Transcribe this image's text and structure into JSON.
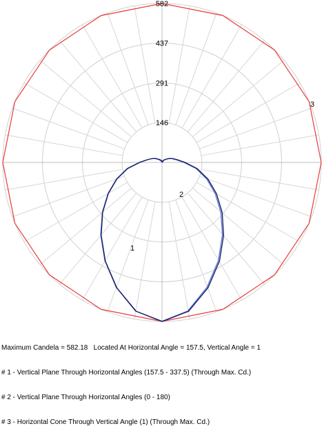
{
  "chart_data": {
    "type": "polar",
    "radial_ticks": [
      "146",
      "291",
      "437",
      "582"
    ],
    "radial_tick_values": [
      146,
      291,
      437,
      582
    ],
    "r_max": 582,
    "angular_gridlines_deg": 10,
    "series": [
      {
        "label": "1",
        "color": "#4a6fd8",
        "angles_deg": [
          0,
          10,
          20,
          30,
          40,
          50,
          60,
          70,
          80,
          90,
          100,
          110,
          120,
          130,
          140,
          150,
          160,
          170,
          180
        ],
        "r": [
          582,
          552,
          486,
          415,
          346,
          283,
          226,
          175,
          128,
          82,
          55,
          40,
          28,
          18,
          12,
          7,
          4,
          2,
          0
        ]
      },
      {
        "label": "2",
        "color": "#1a1a5a",
        "angles_deg": [
          0,
          10,
          20,
          30,
          40,
          50,
          60,
          70,
          80,
          90,
          100,
          110,
          120,
          130,
          140,
          150,
          160,
          170,
          180
        ],
        "r": [
          582,
          553,
          488,
          417,
          348,
          285,
          228,
          177,
          129,
          83,
          56,
          41,
          29,
          19,
          13,
          8,
          4,
          2,
          0
        ]
      },
      {
        "label": "3",
        "color": "#e83a3a",
        "cone": true,
        "r": 582
      }
    ]
  },
  "caption": {
    "max_line": "Maximum Candela = 582.18   Located At Horizontal Angle = 157.5, Vertical Angle = 1",
    "legend": [
      "# 1 - Vertical Plane Through Horizontal Angles (157.5 - 337.5) (Through Max. Cd.)",
      "# 2 - Vertical Plane Through Horizontal Angles (0 - 180)",
      "# 3 - Horizontal Cone Through Vertical Angle (1) (Through Max. Cd.)"
    ]
  }
}
